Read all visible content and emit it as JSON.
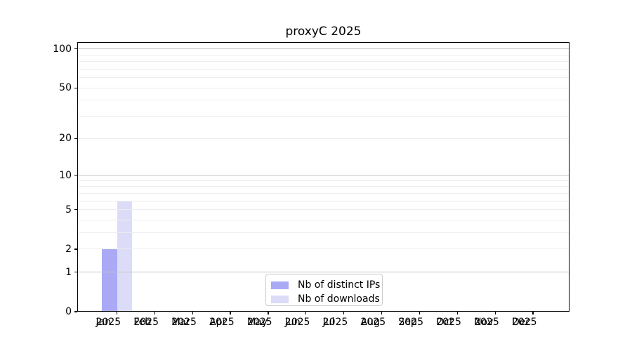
{
  "figure": {
    "background": "#ffffff"
  },
  "chart_data": {
    "type": "bar",
    "title": "proxyC 2025",
    "x": {
      "categories": [
        "Jan",
        "Feb",
        "Mar",
        "Apr",
        "May",
        "Jun",
        "Jul",
        "Aug",
        "Sep",
        "Oct",
        "Nov",
        "Dec"
      ],
      "year_label": "2025"
    },
    "series": [
      {
        "name": "Nb of distinct IPs",
        "color": "#a9a9f5",
        "values": [
          2,
          0,
          0,
          0,
          0,
          0,
          0,
          0,
          0,
          0,
          0,
          0
        ]
      },
      {
        "name": "Nb of downloads",
        "color": "#dcdcf8",
        "values": [
          6,
          0,
          0,
          0,
          0,
          0,
          0,
          0,
          0,
          0,
          0,
          0
        ]
      }
    ],
    "yscale": "log1p",
    "ylim": [
      0,
      113
    ],
    "y_tick_values": [
      0,
      1,
      2,
      5,
      10,
      20,
      50,
      100
    ],
    "y_tick_labels": [
      "0",
      "1",
      "2",
      "5",
      "10",
      "20",
      "50",
      "100"
    ],
    "y_major_gridlines": [
      1,
      10,
      100
    ],
    "y_minor_gridlines": [
      2,
      3,
      4,
      5,
      6,
      7,
      8,
      9,
      20,
      30,
      40,
      50,
      60,
      70,
      80,
      90
    ],
    "grid": true,
    "grid_above_bars": true,
    "legend_position": "lower center",
    "colors": {
      "major_grid": "#c6c6c6",
      "minor_grid": "#ececec",
      "spine": "#000000",
      "text": "#000000",
      "legend_border": "#cbcbcb"
    }
  }
}
